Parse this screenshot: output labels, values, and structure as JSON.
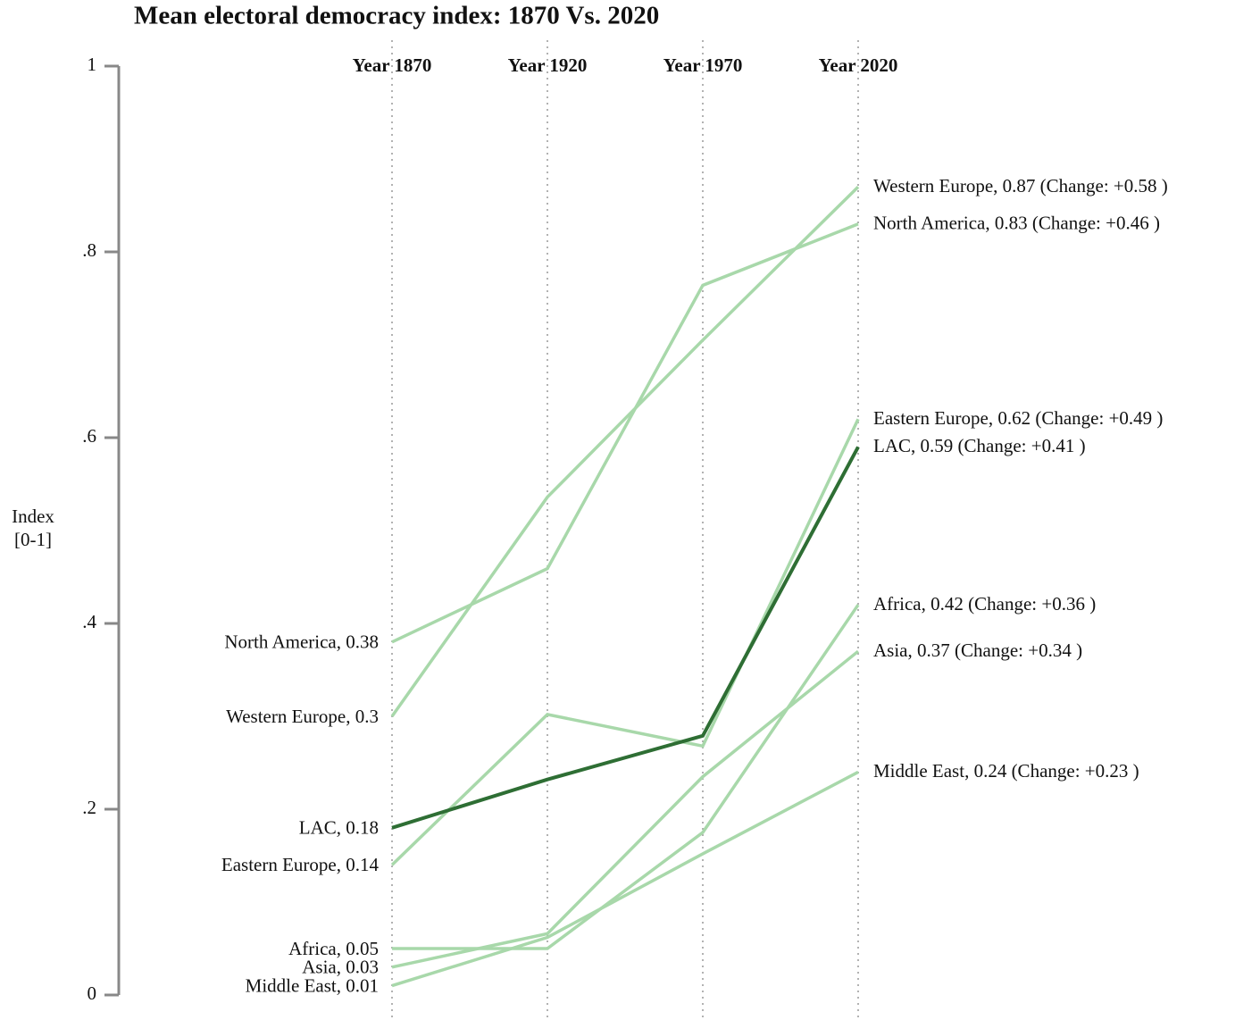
{
  "chart_data": {
    "type": "slope",
    "title": "Mean electoral democracy index: 1870 Vs. 2020",
    "ylabel": [
      "Index",
      "[0-1]"
    ],
    "categories": [
      "Year 1870",
      "Year 1920",
      "Year 1970",
      "Year 2020"
    ],
    "ylim": [
      0,
      1
    ],
    "yticks": [
      0,
      {
        "value": 0.2,
        "label": ".2"
      },
      {
        "value": 0.4,
        "label": ".4"
      },
      {
        "value": 0.6,
        "label": ".6"
      },
      {
        "value": 0.8,
        "label": ".8"
      },
      1
    ],
    "series": [
      {
        "name": "Western Europe",
        "color": "#a8d8aa",
        "values": [
          0.3,
          0.536,
          0.705,
          0.87
        ],
        "start_label": "Western Europe, 0.3",
        "end_label": "Western Europe, 0.87 (Change: +0.58 )"
      },
      {
        "name": "North America",
        "color": "#a8d8aa",
        "values": [
          0.38,
          0.459,
          0.764,
          0.83
        ],
        "start_label": "North America, 0.38",
        "end_label": "North America, 0.83 (Change: +0.46 )"
      },
      {
        "name": "Eastern Europe",
        "color": "#a8d8aa",
        "values": [
          0.14,
          0.302,
          0.268,
          0.62
        ],
        "start_label": "Eastern Europe, 0.14",
        "end_label": "Eastern Europe, 0.62 (Change: +0.49 )"
      },
      {
        "name": "Africa",
        "color": "#a8d8aa",
        "values": [
          0.05,
          0.05,
          0.175,
          0.42
        ],
        "start_label": "Africa, 0.05",
        "end_label": "Africa, 0.42 (Change: +0.36 )"
      },
      {
        "name": "Asia",
        "color": "#a8d8aa",
        "values": [
          0.03,
          0.066,
          0.235,
          0.37
        ],
        "start_label": "Asia, 0.03",
        "end_label": "Asia, 0.37 (Change: +0.34 )"
      },
      {
        "name": "Middle East",
        "color": "#a8d8aa",
        "values": [
          0.01,
          0.062,
          0.152,
          0.24
        ],
        "start_label": "Middle East, 0.01",
        "end_label": "Middle East, 0.24 (Change: +0.23 )"
      },
      {
        "name": "LAC",
        "color": "#2e6e34",
        "highlight": true,
        "values": [
          0.18,
          0.232,
          0.279,
          0.59
        ],
        "start_label": "LAC, 0.18",
        "end_label": "LAC, 0.59 (Change: +0.41 )"
      }
    ]
  }
}
